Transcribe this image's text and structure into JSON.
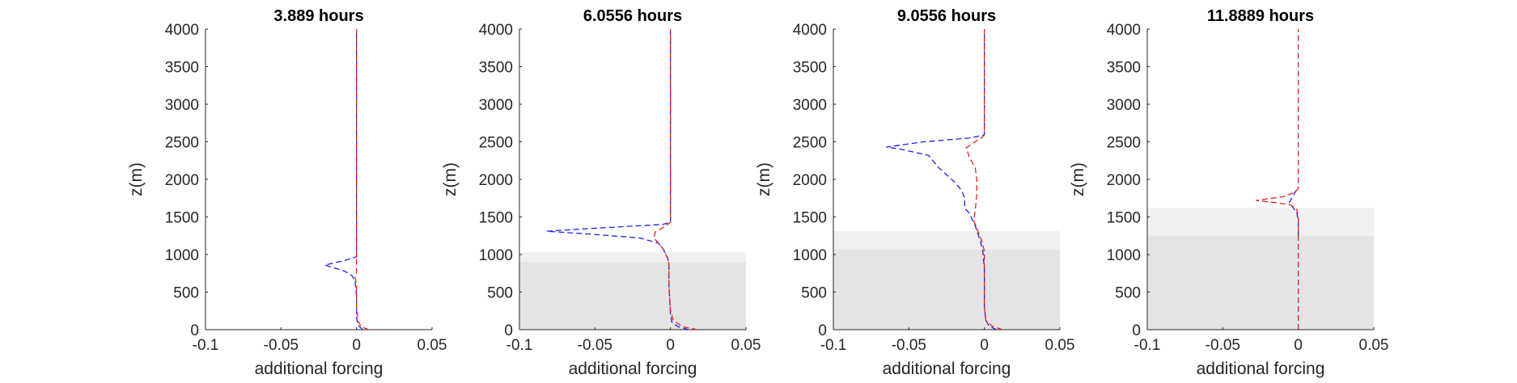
{
  "figure": {
    "panel_titles": [
      "3.889 hours",
      "6.0556 hours",
      "9.0556 hours",
      "11.8889 hours"
    ]
  },
  "colors": {
    "series_blue": "#1f1fe6",
    "series_red": "#e61f1f",
    "shade_light": "#f0f0f0",
    "shade_dark": "#e4e4e4",
    "axis": "#262626"
  },
  "chart_data": [
    {
      "type": "line",
      "title": "3.889 hours",
      "xlabel": "additional forcing",
      "ylabel": "z(m)",
      "xlim": [
        -0.1,
        0.05
      ],
      "ylim": [
        0,
        4000
      ],
      "xticks": [
        "-0.1",
        "-0.05",
        "0",
        "0.05"
      ],
      "yticks": [
        "0",
        "500",
        "1000",
        "1500",
        "2000",
        "2500",
        "3000",
        "3500",
        "4000"
      ],
      "line_style": "dashed",
      "shaded_bands": [],
      "series": [
        {
          "color": "#1f1fe6",
          "points": [
            [
              0.004,
              0
            ],
            [
              0.001,
              60
            ],
            [
              0.0,
              150
            ],
            [
              0.0,
              450
            ],
            [
              -0.001,
              650
            ],
            [
              -0.003,
              720
            ],
            [
              -0.008,
              780
            ],
            [
              -0.021,
              860
            ],
            [
              -0.008,
              920
            ],
            [
              0.0,
              970
            ],
            [
              0.0,
              1200
            ],
            [
              0.0,
              2000
            ],
            [
              0.0,
              3000
            ],
            [
              0.0,
              4000
            ]
          ]
        },
        {
          "color": "#e61f1f",
          "points": [
            [
              0.008,
              0
            ],
            [
              0.003,
              40
            ],
            [
              0.001,
              120
            ],
            [
              0.0,
              300
            ],
            [
              0.0,
              600
            ],
            [
              -0.001,
              700
            ],
            [
              0.0,
              760
            ],
            [
              0.0,
              1000
            ],
            [
              0.0,
              2000
            ],
            [
              0.0,
              3000
            ],
            [
              0.0,
              4000
            ]
          ]
        }
      ]
    },
    {
      "type": "line",
      "title": "6.0556 hours",
      "xlabel": "additional forcing",
      "ylabel": "z(m)",
      "xlim": [
        -0.1,
        0.05
      ],
      "ylim": [
        0,
        4000
      ],
      "xticks": [
        "-0.1",
        "-0.05",
        "0",
        "0.05"
      ],
      "yticks": [
        "0",
        "500",
        "1000",
        "1500",
        "2000",
        "2500",
        "3000",
        "3500",
        "4000"
      ],
      "line_style": "dashed",
      "shaded_bands": [
        {
          "y_from": 0,
          "y_to": 1030,
          "shade": "light"
        },
        {
          "y_from": 0,
          "y_to": 900,
          "shade": "dark"
        }
      ],
      "series": [
        {
          "color": "#1f1fe6",
          "points": [
            [
              0.012,
              0
            ],
            [
              0.005,
              40
            ],
            [
              0.001,
              100
            ],
            [
              0.0,
              200
            ],
            [
              -0.001,
              600
            ],
            [
              -0.001,
              880
            ],
            [
              -0.002,
              960
            ],
            [
              -0.005,
              1080
            ],
            [
              -0.008,
              1150
            ],
            [
              -0.02,
              1220
            ],
            [
              -0.052,
              1270
            ],
            [
              -0.082,
              1310
            ],
            [
              -0.05,
              1350
            ],
            [
              -0.005,
              1400
            ],
            [
              0.0,
              1430
            ],
            [
              0.0,
              1500
            ],
            [
              0.0,
              2000
            ],
            [
              0.0,
              3000
            ],
            [
              0.0,
              4000
            ]
          ]
        },
        {
          "color": "#e61f1f",
          "points": [
            [
              0.018,
              0
            ],
            [
              0.008,
              40
            ],
            [
              0.002,
              120
            ],
            [
              0.0,
              250
            ],
            [
              -0.001,
              600
            ],
            [
              -0.001,
              880
            ],
            [
              -0.002,
              950
            ],
            [
              -0.004,
              1050
            ],
            [
              -0.007,
              1130
            ],
            [
              -0.011,
              1220
            ],
            [
              -0.01,
              1300
            ],
            [
              -0.004,
              1370
            ],
            [
              0.0,
              1430
            ],
            [
              0.0,
              2000
            ],
            [
              0.0,
              3000
            ],
            [
              0.0,
              4000
            ]
          ]
        }
      ]
    },
    {
      "type": "line",
      "title": "9.0556 hours",
      "xlabel": "additional forcing",
      "ylabel": "z(m)",
      "xlim": [
        -0.1,
        0.05
      ],
      "ylim": [
        0,
        4000
      ],
      "xticks": [
        "-0.1",
        "-0.05",
        "0",
        "0.05"
      ],
      "yticks": [
        "0",
        "500",
        "1000",
        "1500",
        "2000",
        "2500",
        "3000",
        "3500",
        "4000"
      ],
      "line_style": "dashed",
      "shaded_bands": [
        {
          "y_from": 0,
          "y_to": 1310,
          "shade": "light"
        },
        {
          "y_from": 0,
          "y_to": 1070,
          "shade": "dark"
        }
      ],
      "series": [
        {
          "color": "#1f1fe6",
          "points": [
            [
              0.008,
              0
            ],
            [
              0.003,
              50
            ],
            [
              0.001,
              120
            ],
            [
              0.0,
              300
            ],
            [
              0.0,
              800
            ],
            [
              -0.001,
              1050
            ],
            [
              -0.003,
              1200
            ],
            [
              -0.006,
              1380
            ],
            [
              -0.01,
              1550
            ],
            [
              -0.013,
              1620
            ],
            [
              -0.013,
              1750
            ],
            [
              -0.015,
              1850
            ],
            [
              -0.02,
              1970
            ],
            [
              -0.03,
              2150
            ],
            [
              -0.037,
              2320
            ],
            [
              -0.055,
              2400
            ],
            [
              -0.065,
              2430
            ],
            [
              -0.04,
              2500
            ],
            [
              -0.01,
              2550
            ],
            [
              0.0,
              2590
            ],
            [
              0.0,
              2700
            ],
            [
              0.0,
              3000
            ],
            [
              0.0,
              4000
            ]
          ]
        },
        {
          "color": "#e61f1f",
          "points": [
            [
              0.012,
              0
            ],
            [
              0.005,
              50
            ],
            [
              0.001,
              120
            ],
            [
              0.0,
              300
            ],
            [
              0.0,
              800
            ],
            [
              0.0,
              1050
            ],
            [
              -0.002,
              1200
            ],
            [
              -0.004,
              1300
            ],
            [
              -0.007,
              1450
            ],
            [
              -0.006,
              1600
            ],
            [
              -0.005,
              1800
            ],
            [
              -0.005,
              2000
            ],
            [
              -0.006,
              2150
            ],
            [
              -0.01,
              2300
            ],
            [
              -0.012,
              2420
            ],
            [
              -0.007,
              2490
            ],
            [
              -0.002,
              2550
            ],
            [
              0.0,
              2600
            ],
            [
              0.0,
              2700
            ],
            [
              0.0,
              3000
            ],
            [
              0.0,
              4000
            ]
          ]
        }
      ]
    },
    {
      "type": "line",
      "title": "11.8889 hours",
      "xlabel": "additional forcing",
      "ylabel": "z(m)",
      "xlim": [
        -0.1,
        0.05
      ],
      "ylim": [
        0,
        4000
      ],
      "xticks": [
        "-0.1",
        "-0.05",
        "0",
        "0.05"
      ],
      "yticks": [
        "0",
        "500",
        "1000",
        "1500",
        "2000",
        "2500",
        "3000",
        "3500",
        "4000"
      ],
      "line_style": "dashed",
      "shaded_bands": [
        {
          "y_from": 0,
          "y_to": 1620,
          "shade": "light"
        },
        {
          "y_from": 0,
          "y_to": 1250,
          "shade": "dark"
        }
      ],
      "series": [
        {
          "color": "#1f1fe6",
          "points": [
            [
              0.0,
              1250
            ],
            [
              0.0,
              1450
            ],
            [
              -0.001,
              1560
            ],
            [
              -0.004,
              1640
            ],
            [
              -0.006,
              1690
            ],
            [
              -0.004,
              1760
            ],
            [
              -0.002,
              1830
            ],
            [
              0.0,
              1900
            ]
          ]
        },
        {
          "color": "#e61f1f",
          "points": [
            [
              0.0,
              0
            ],
            [
              0.0,
              1500
            ],
            [
              -0.001,
              1600
            ],
            [
              -0.005,
              1660
            ],
            [
              -0.015,
              1690
            ],
            [
              -0.028,
              1720
            ],
            [
              -0.01,
              1770
            ],
            [
              -0.002,
              1830
            ],
            [
              0.0,
              1880
            ],
            [
              0.0,
              2500
            ],
            [
              0.0,
              3000
            ],
            [
              0.0,
              4000
            ]
          ]
        }
      ]
    }
  ]
}
